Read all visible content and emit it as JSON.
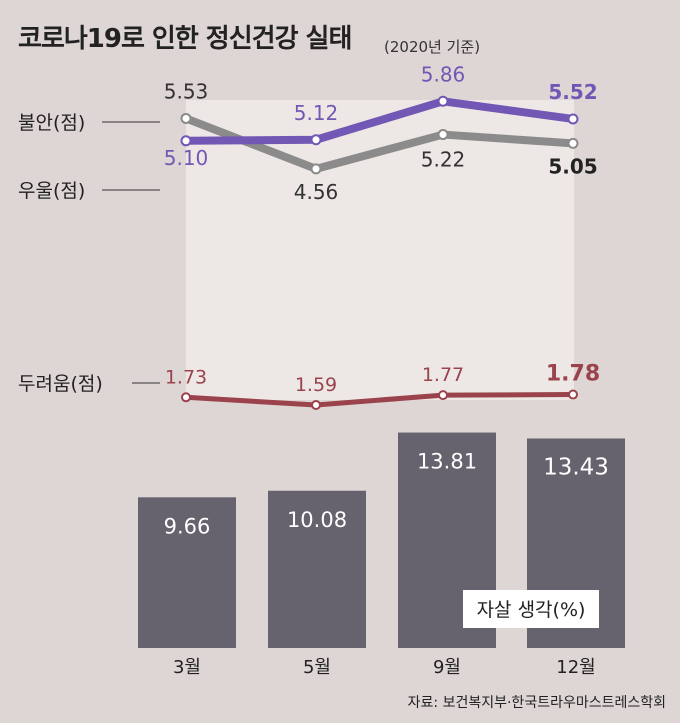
{
  "header": {
    "title": "코로나19로 인한 정신건강 실태",
    "subtitle": "(2020년 기준)"
  },
  "source": "자료: 보건복지부·한국트라우마스트레스학회",
  "colors": {
    "background": "#ddd6d5",
    "panel": "#ede8e6",
    "anxiety": "#7357b4",
    "depression": "#8c8b8b",
    "fear": "#9b434c",
    "bars": "#66626e"
  },
  "chart_data": [
    {
      "type": "line",
      "x": [
        "3월",
        "5월",
        "9월",
        "12월"
      ],
      "series": [
        {
          "name": "불안(점)",
          "values": [
            5.1,
            5.12,
            5.86,
            5.52
          ],
          "labels": [
            "5.10",
            "5.12",
            "5.86",
            "5.52"
          ]
        },
        {
          "name": "우울(점)",
          "values": [
            5.53,
            4.56,
            5.22,
            5.05
          ],
          "labels": [
            "5.53",
            "4.56",
            "5.22",
            "5.05"
          ]
        },
        {
          "name": "두려움(점)",
          "values": [
            1.73,
            1.59,
            1.77,
            1.78
          ],
          "labels": [
            "1.73",
            "1.59",
            "1.77",
            "1.78"
          ]
        }
      ]
    },
    {
      "type": "bar",
      "categories": [
        "3월",
        "5월",
        "9월",
        "12월"
      ],
      "values": [
        9.66,
        10.08,
        13.81,
        13.43
      ],
      "labels": [
        "9.66",
        "10.08",
        "13.81",
        "13.43"
      ],
      "series_label": "자살 생각(%)"
    }
  ]
}
